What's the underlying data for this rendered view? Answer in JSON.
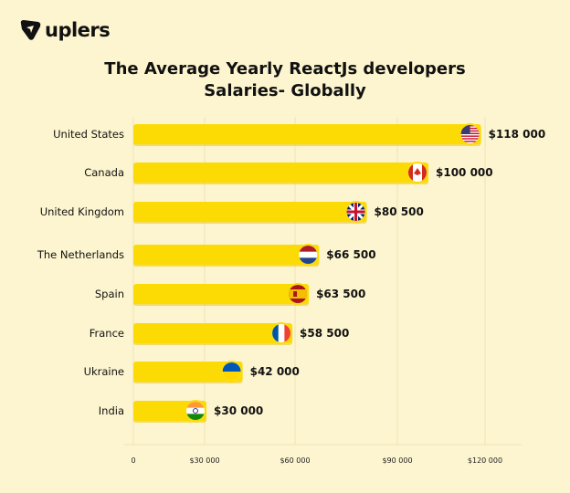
{
  "brand": {
    "name": "uplers"
  },
  "chart_data": {
    "type": "bar",
    "orientation": "horizontal",
    "title": "The Average Yearly ReactJs developers Salaries- Globally",
    "title_lines": [
      "The Average Yearly ReactJs developers",
      "Salaries- Globally"
    ],
    "categories": [
      "United States",
      "Canada",
      "United Kingdom",
      "The Netherlands",
      "Spain",
      "France",
      "Ukraine",
      "India"
    ],
    "values": [
      118000,
      100000,
      80500,
      66500,
      63500,
      58500,
      42000,
      30000
    ],
    "data_labels": [
      "$118 000",
      "$100 000",
      "$80 500",
      "$66 500",
      "$63 500",
      "$58 500",
      "$42 000",
      "$30 000"
    ],
    "flags": [
      "us",
      "ca",
      "gb",
      "nl",
      "es",
      "fr",
      "ua",
      "in"
    ],
    "xticks": [
      0,
      30000,
      60000,
      90000,
      120000
    ],
    "xtick_labels": [
      "0",
      "$30 000",
      "$60 000",
      "$90 000",
      "$120 000"
    ],
    "xlim": [
      0,
      130000
    ],
    "grid": true,
    "bar_color": "#fcdb05"
  }
}
